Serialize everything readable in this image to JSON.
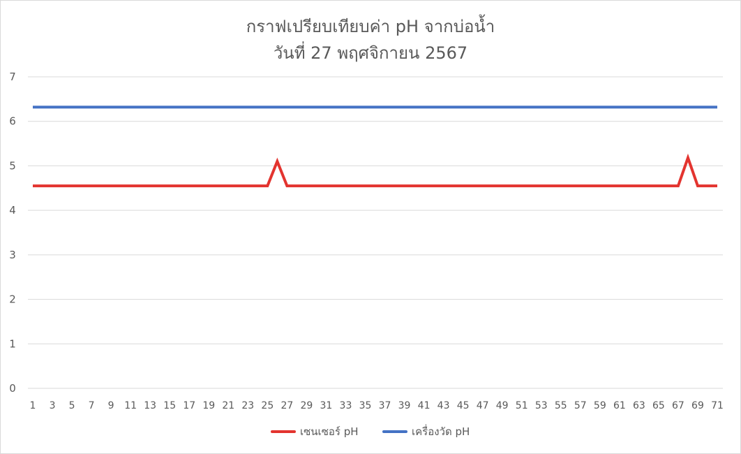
{
  "chart_data": {
    "type": "line",
    "title": "กราฟเปรียบเทียบค่า pH จากบ่อน้ำ",
    "subtitle": "วันที่ 27 พฤศจิกายน 2567",
    "x": [
      1,
      2,
      3,
      4,
      5,
      6,
      7,
      8,
      9,
      10,
      11,
      12,
      13,
      14,
      15,
      16,
      17,
      18,
      19,
      20,
      21,
      22,
      23,
      24,
      25,
      26,
      27,
      28,
      29,
      30,
      31,
      32,
      33,
      34,
      35,
      36,
      37,
      38,
      39,
      40,
      41,
      42,
      43,
      44,
      45,
      46,
      47,
      48,
      49,
      50,
      51,
      52,
      53,
      54,
      55,
      56,
      57,
      58,
      59,
      60,
      61,
      62,
      63,
      64,
      65,
      66,
      67,
      68,
      69,
      70,
      71
    ],
    "x_tick_labels": [
      1,
      3,
      5,
      7,
      9,
      11,
      13,
      15,
      17,
      19,
      21,
      23,
      25,
      27,
      29,
      31,
      33,
      35,
      37,
      39,
      41,
      43,
      45,
      47,
      49,
      51,
      53,
      55,
      57,
      59,
      61,
      63,
      65,
      67,
      69,
      71
    ],
    "ylim": [
      0,
      7
    ],
    "y_ticks": [
      0,
      1,
      2,
      3,
      4,
      5,
      6,
      7
    ],
    "grid": true,
    "legend_position": "bottom",
    "series": [
      {
        "name": "เซนเซอร์ pH",
        "color": "#e3342f",
        "values": [
          4.55,
          4.55,
          4.55,
          4.55,
          4.55,
          4.55,
          4.55,
          4.55,
          4.55,
          4.55,
          4.55,
          4.55,
          4.55,
          4.55,
          4.55,
          4.55,
          4.55,
          4.55,
          4.55,
          4.55,
          4.55,
          4.55,
          4.55,
          4.55,
          4.55,
          5.1,
          4.55,
          4.55,
          4.55,
          4.55,
          4.55,
          4.55,
          4.55,
          4.55,
          4.55,
          4.55,
          4.55,
          4.55,
          4.55,
          4.55,
          4.55,
          4.55,
          4.55,
          4.55,
          4.55,
          4.55,
          4.55,
          4.55,
          4.55,
          4.55,
          4.55,
          4.55,
          4.55,
          4.55,
          4.55,
          4.55,
          4.55,
          4.55,
          4.55,
          4.55,
          4.55,
          4.55,
          4.55,
          4.55,
          4.55,
          4.55,
          4.55,
          5.18,
          4.55,
          4.55,
          4.55
        ]
      },
      {
        "name": "เครื่องวัด pH",
        "color": "#4472c4",
        "values": [
          6.32,
          6.32,
          6.32,
          6.32,
          6.32,
          6.32,
          6.32,
          6.32,
          6.32,
          6.32,
          6.32,
          6.32,
          6.32,
          6.32,
          6.32,
          6.32,
          6.32,
          6.32,
          6.32,
          6.32,
          6.32,
          6.32,
          6.32,
          6.32,
          6.32,
          6.32,
          6.32,
          6.32,
          6.32,
          6.32,
          6.32,
          6.32,
          6.32,
          6.32,
          6.32,
          6.32,
          6.32,
          6.32,
          6.32,
          6.32,
          6.32,
          6.32,
          6.32,
          6.32,
          6.32,
          6.32,
          6.32,
          6.32,
          6.32,
          6.32,
          6.32,
          6.32,
          6.32,
          6.32,
          6.32,
          6.32,
          6.32,
          6.32,
          6.32,
          6.32,
          6.32,
          6.32,
          6.32,
          6.32,
          6.32,
          6.32,
          6.32,
          6.32,
          6.32,
          6.32,
          6.32
        ]
      }
    ]
  }
}
